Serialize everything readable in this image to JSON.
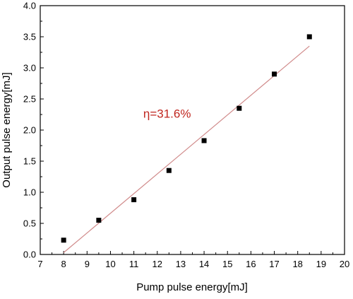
{
  "chart_data": {
    "type": "scatter",
    "title": "",
    "xlabel": "Pump pulse energy[mJ]",
    "ylabel": "Output pulse energy[mJ]",
    "xlim": [
      7,
      20
    ],
    "ylim": [
      0,
      4.0
    ],
    "x_ticks": [
      7,
      8,
      9,
      10,
      11,
      12,
      13,
      14,
      15,
      16,
      17,
      18,
      19,
      20
    ],
    "y_ticks": [
      0.0,
      0.5,
      1.0,
      1.5,
      2.0,
      2.5,
      3.0,
      3.5,
      4.0
    ],
    "x_tick_labels": [
      "7",
      "8",
      "9",
      "10",
      "11",
      "12",
      "13",
      "14",
      "15",
      "16",
      "17",
      "18",
      "19",
      "20"
    ],
    "y_tick_labels": [
      "0.0",
      "0.5",
      "1.0",
      "1.5",
      "2.0",
      "2.5",
      "3.0",
      "3.5",
      "4.0"
    ],
    "grid": false,
    "series": [
      {
        "marker": "square",
        "color": "#000000",
        "points": [
          {
            "x": 8.0,
            "y": 0.23
          },
          {
            "x": 9.5,
            "y": 0.55
          },
          {
            "x": 11.0,
            "y": 0.88
          },
          {
            "x": 12.5,
            "y": 1.35
          },
          {
            "x": 14.0,
            "y": 1.83
          },
          {
            "x": 15.5,
            "y": 2.35
          },
          {
            "x": 17.0,
            "y": 2.9
          },
          {
            "x": 18.5,
            "y": 3.5
          }
        ]
      }
    ],
    "fit_line": {
      "color": "#d08a8a",
      "x": [
        8.0,
        18.5
      ],
      "y": [
        0.03,
        3.35
      ]
    },
    "annotation": {
      "text": "η=31.6%",
      "color": "#c0261f",
      "x": 11.4,
      "y": 2.2
    }
  }
}
